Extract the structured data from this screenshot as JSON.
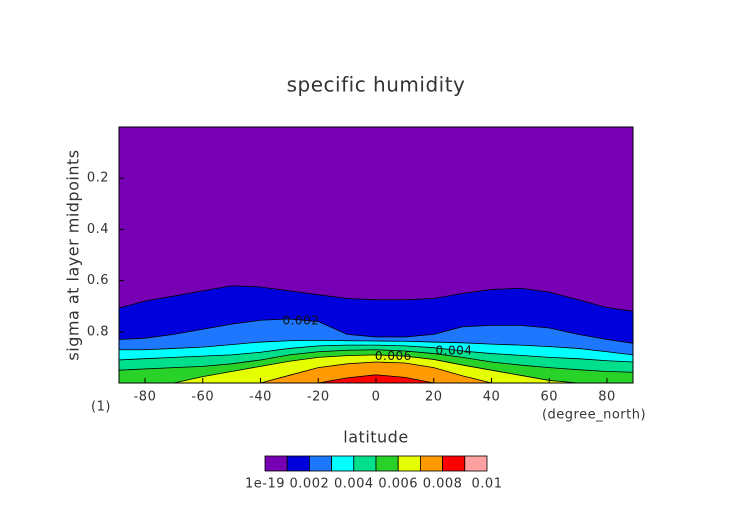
{
  "chart_data": {
    "type": "contour",
    "title": "specific humidity",
    "xlabel": "latitude",
    "ylabel": "sigma at layer midpoints",
    "x_unit": "(degree_north)",
    "y_unit": "(1)",
    "xlim": [
      -89,
      89
    ],
    "ylim": [
      1,
      0
    ],
    "xticks": [
      -80,
      -60,
      -40,
      -20,
      0,
      20,
      40,
      60,
      80
    ],
    "yticks": [
      0.2,
      0.4,
      0.6,
      0.8
    ],
    "x": [
      -89,
      -80,
      -70,
      -60,
      -50,
      -40,
      -30,
      -20,
      -10,
      0,
      10,
      20,
      30,
      40,
      50,
      60,
      70,
      80,
      89
    ],
    "levels": [
      1e-19,
      0.001,
      0.002,
      0.003,
      0.004,
      0.005,
      0.006,
      0.007,
      0.008,
      0.009,
      0.01
    ],
    "colors": [
      "#7800b4",
      "#0000dc",
      "#1e78ff",
      "#00ffff",
      "#00e08c",
      "#28d228",
      "#e6ff00",
      "#ff9b00",
      "#ff0000",
      "#ffa0a0"
    ],
    "contour_sigma": [
      [
        0.707,
        0.68,
        0.66,
        0.64,
        0.62,
        0.625,
        0.64,
        0.655,
        0.67,
        0.675,
        0.675,
        0.67,
        0.65,
        0.635,
        0.63,
        0.645,
        0.675,
        0.705,
        0.72
      ],
      [
        0.83,
        0.825,
        0.81,
        0.79,
        0.77,
        0.755,
        0.75,
        0.76,
        0.81,
        0.82,
        0.82,
        0.81,
        0.78,
        0.775,
        0.775,
        0.785,
        0.81,
        0.83,
        0.845
      ],
      [
        0.87,
        0.87,
        0.865,
        0.86,
        0.85,
        0.84,
        0.835,
        0.833,
        0.835,
        0.836,
        0.837,
        0.84,
        0.843,
        0.848,
        0.852,
        0.858,
        0.865,
        0.878,
        0.89
      ],
      [
        0.91,
        0.905,
        0.9,
        0.895,
        0.89,
        0.88,
        0.865,
        0.855,
        0.852,
        0.852,
        0.855,
        0.862,
        0.875,
        0.885,
        0.892,
        0.9,
        0.905,
        0.913,
        0.918
      ],
      [
        0.95,
        0.945,
        0.94,
        0.935,
        0.925,
        0.91,
        0.89,
        0.878,
        0.872,
        0.87,
        0.875,
        0.885,
        0.9,
        0.918,
        0.93,
        0.94,
        0.948,
        0.955,
        0.958
      ],
      [
        1,
        1,
        1,
        0.975,
        0.955,
        0.935,
        0.915,
        0.9,
        0.893,
        0.89,
        0.895,
        0.908,
        0.93,
        0.95,
        0.97,
        0.99,
        1,
        1,
        1
      ],
      [
        1,
        1,
        1,
        1,
        1,
        1,
        0.97,
        0.94,
        0.925,
        0.918,
        0.922,
        0.94,
        0.972,
        1,
        1,
        1,
        1,
        1,
        1
      ],
      [
        1,
        1,
        1,
        1,
        1,
        1,
        1,
        1,
        0.98,
        0.968,
        0.978,
        1,
        1,
        1,
        1,
        1,
        1,
        1,
        1
      ],
      [
        1,
        1,
        1,
        1,
        1,
        1,
        1,
        1,
        1,
        1,
        1,
        1,
        1,
        1,
        1,
        1,
        1,
        1,
        1
      ]
    ],
    "colorbar_ticks": [
      1e-19,
      0.002,
      0.004,
      0.006,
      0.008,
      0.01
    ]
  }
}
